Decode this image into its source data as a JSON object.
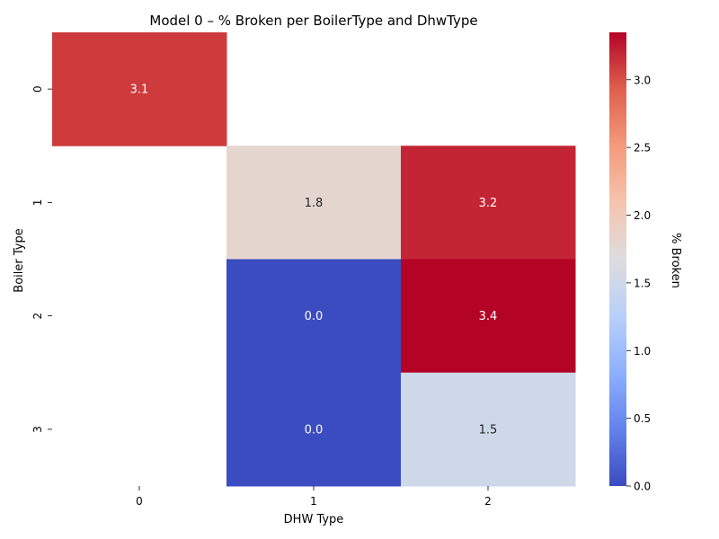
{
  "chart_data": {
    "type": "heatmap",
    "title": "Model 0 – % Broken per BoilerType and DhwType",
    "xlabel": "DHW Type",
    "ylabel": "Boiler Type",
    "x_categories": [
      "0",
      "1",
      "2"
    ],
    "y_categories": [
      "0",
      "1",
      "2",
      "3"
    ],
    "cells": [
      {
        "row": 0,
        "col": 0,
        "value": 3.1,
        "label": "3.1"
      },
      {
        "row": 1,
        "col": 1,
        "value": 1.8,
        "label": "1.8"
      },
      {
        "row": 1,
        "col": 2,
        "value": 3.2,
        "label": "3.2"
      },
      {
        "row": 2,
        "col": 1,
        "value": 0.0,
        "label": "0.0"
      },
      {
        "row": 2,
        "col": 2,
        "value": 3.4,
        "label": "3.4"
      },
      {
        "row": 3,
        "col": 1,
        "value": 0.0,
        "label": "0.0"
      },
      {
        "row": 3,
        "col": 2,
        "value": 1.5,
        "label": "1.5"
      }
    ],
    "colorbar": {
      "label": "% Broken",
      "colormap": "coolwarm",
      "vmin": 0.0,
      "vmax": 3.35,
      "ticks": [
        0.0,
        0.5,
        1.0,
        1.5,
        2.0,
        2.5,
        3.0
      ],
      "tick_labels": [
        "0.0",
        "0.5",
        "1.0",
        "1.5",
        "2.0",
        "2.5",
        "3.0"
      ]
    },
    "grid": false,
    "missing_cells": "blank"
  }
}
